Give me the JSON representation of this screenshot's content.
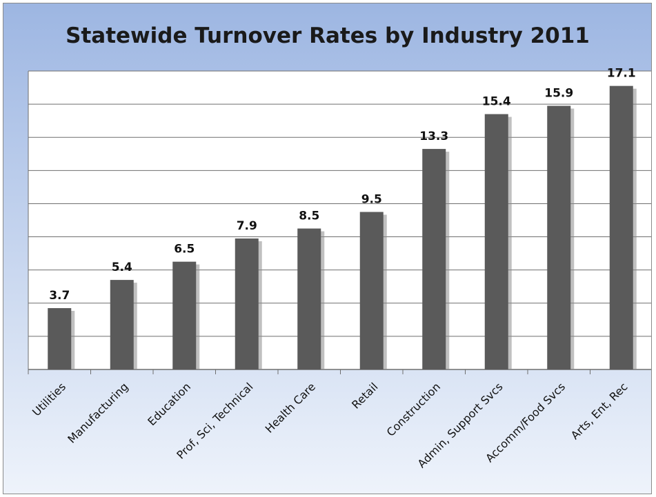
{
  "chart_data": {
    "type": "bar",
    "title": "Statewide Turnover Rates by Industry 2011",
    "xlabel": "",
    "ylabel": "",
    "categories": [
      "Utilities",
      "Manufacturing",
      "Education",
      "Prof, Sci, Technical",
      "Health Care",
      "Retail",
      "Construction",
      "Admin, Support Svcs",
      "Accomm/Food Svcs",
      "Arts, Ent, Rec"
    ],
    "values": [
      3.7,
      5.4,
      6.5,
      7.9,
      8.5,
      9.5,
      13.3,
      15.4,
      15.9,
      17.1
    ],
    "value_labels": [
      "3.7",
      "5.4",
      "6.5",
      "7.9",
      "8.5",
      "9.5",
      "13.3",
      "15.4",
      "15.9",
      "17.1"
    ],
    "ylim": [
      0,
      18
    ],
    "y_gridline_step": 2,
    "grid": true,
    "y_tick_labels_shown": false,
    "legend": "none",
    "colors": {
      "bar": "#5a5a5a",
      "bar_shadow": "#8c8c8c",
      "gridline": "#6e6e6e",
      "plot_background": "#ffffff"
    }
  }
}
